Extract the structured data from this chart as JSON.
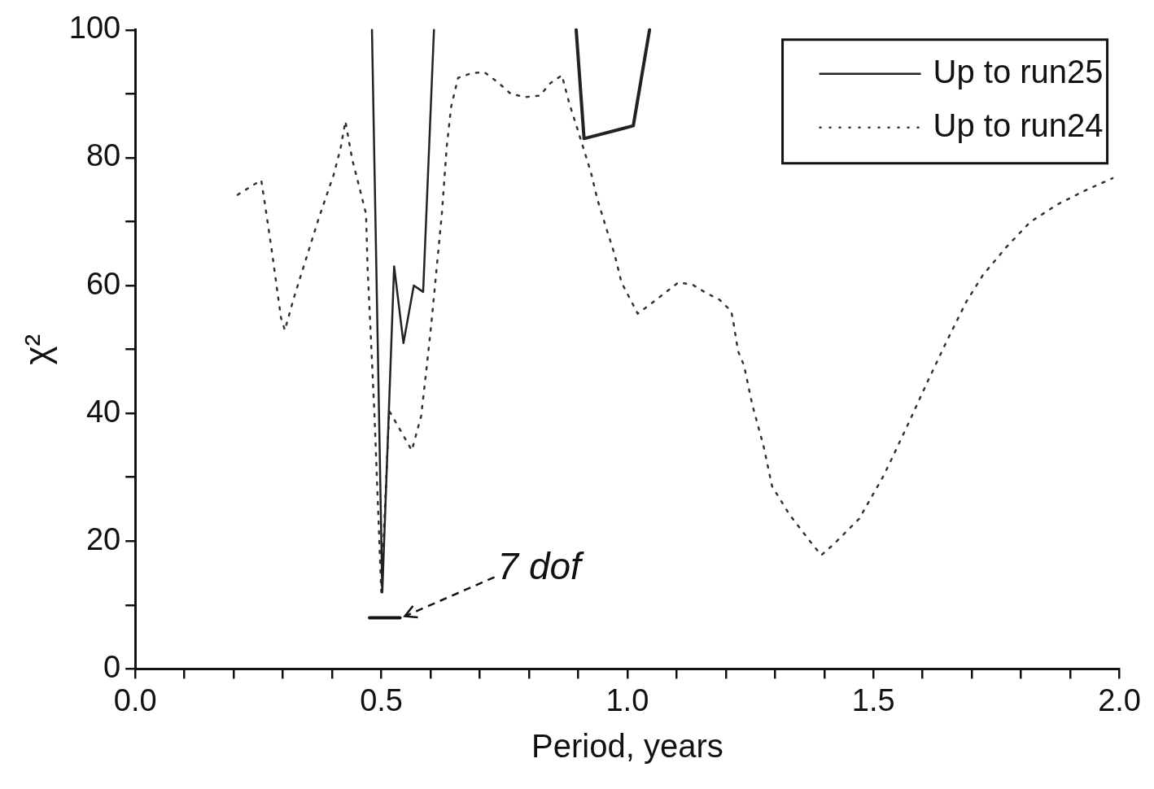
{
  "chart_data": {
    "type": "line",
    "xlabel": "Period, years",
    "ylabel": "χ²",
    "xlim": [
      0,
      2
    ],
    "ylim": [
      0,
      100
    ],
    "xticks": [
      {
        "value": 0,
        "label": "0.0"
      },
      {
        "value": 0.1,
        "label": null
      },
      {
        "value": 0.2,
        "label": null
      },
      {
        "value": 0.3,
        "label": null
      },
      {
        "value": 0.4,
        "label": null
      },
      0.5,
      {
        "value": 0.6,
        "label": null
      },
      {
        "value": 0.7,
        "label": null
      },
      {
        "value": 0.8,
        "label": null
      },
      {
        "value": 0.9,
        "label": null
      },
      {
        "value": 1,
        "label": "1.0"
      },
      {
        "value": 1.1,
        "label": null
      },
      {
        "value": 1.2,
        "label": null
      },
      {
        "value": 1.3,
        "label": null
      },
      {
        "value": 1.4,
        "label": null
      },
      1.5,
      {
        "value": 1.6,
        "label": null
      },
      {
        "value": 1.7,
        "label": null
      },
      {
        "value": 1.8,
        "label": null
      },
      {
        "value": 1.9,
        "label": null
      },
      {
        "value": 2,
        "label": "2.0"
      }
    ],
    "yticks": [
      0,
      {
        "value": 10,
        "label": null
      },
      20,
      {
        "value": 30,
        "label": null
      },
      40,
      {
        "value": 50,
        "label": null
      },
      60,
      {
        "value": 70,
        "label": null
      },
      80,
      {
        "value": 90,
        "label": null
      },
      100
    ],
    "grid": false,
    "legend": "top right",
    "marker": "none",
    "annotations": [
      {
        "text": "7 dof",
        "x": 0.538,
        "y": 8
      }
    ],
    "series": [
      {
        "name": "Up to run25",
        "color": "#222222",
        "line_style": "solid",
        "x": [
          0.481,
          0.502,
          0.526,
          0.545,
          0.566,
          0.585,
          0.607
        ],
        "values": [
          100,
          12,
          63,
          51,
          60,
          59,
          100
        ]
      },
      {
        "color": "#222222",
        "line_style": "solid",
        "x": [
          0.896,
          0.912,
          1.012,
          1.045
        ],
        "values": [
          100,
          83,
          85,
          100
        ]
      },
      {
        "name": "Up to run24",
        "color": "#333333",
        "line_style": "dotted",
        "x": [
          0.208,
          0.256,
          0.265,
          0.277,
          0.296,
          0.304,
          0.322,
          0.348,
          0.374,
          0.403,
          0.417,
          0.427,
          0.441,
          0.455,
          0.469,
          0.472,
          0.486,
          0.5,
          0.516,
          0.545,
          0.562,
          0.581,
          0.593,
          0.602,
          0.623,
          0.633,
          0.642,
          0.656,
          0.682,
          0.709,
          0.737,
          0.763,
          0.792,
          0.822,
          0.844,
          0.867,
          0.882,
          0.901,
          0.926,
          0.939,
          0.957,
          0.974,
          0.988,
          1.021,
          1.047,
          1.104,
          1.133,
          1.161,
          1.187,
          1.211,
          1.216,
          1.225,
          1.237,
          1.254,
          1.277,
          1.294,
          1.329,
          1.372,
          1.394,
          1.419,
          1.471,
          1.519,
          1.533,
          1.571,
          1.609,
          1.649,
          1.689,
          1.723,
          1.77,
          1.818,
          1.874,
          1.931,
          1.986
        ],
        "values": [
          74.2,
          76.5,
          72,
          65.7,
          55,
          53,
          58,
          64.4,
          70.8,
          77.3,
          81.4,
          85.7,
          79.7,
          75.5,
          71.2,
          63,
          40,
          12,
          40.4,
          36.5,
          34.2,
          39.6,
          47.8,
          54.3,
          71.2,
          81.8,
          88,
          92.5,
          93.2,
          93.4,
          91.8,
          90,
          89.5,
          89.7,
          91.7,
          92.9,
          88.5,
          83.9,
          77.7,
          73.5,
          69,
          64.9,
          60.5,
          55.6,
          57.1,
          60.5,
          60.1,
          58.8,
          57.8,
          56,
          54,
          49.7,
          47.5,
          41.3,
          34.8,
          28.6,
          24.2,
          19.9,
          17.8,
          19.5,
          23.5,
          30,
          32.2,
          38.4,
          44.8,
          51.3,
          57.5,
          61.7,
          66,
          69.9,
          72.7,
          74.9,
          76.8
        ]
      },
      {
        "color": "#111111",
        "line_style": "solid",
        "x": [
          0.476,
          0.538
        ],
        "values": [
          8,
          8
        ]
      }
    ]
  }
}
